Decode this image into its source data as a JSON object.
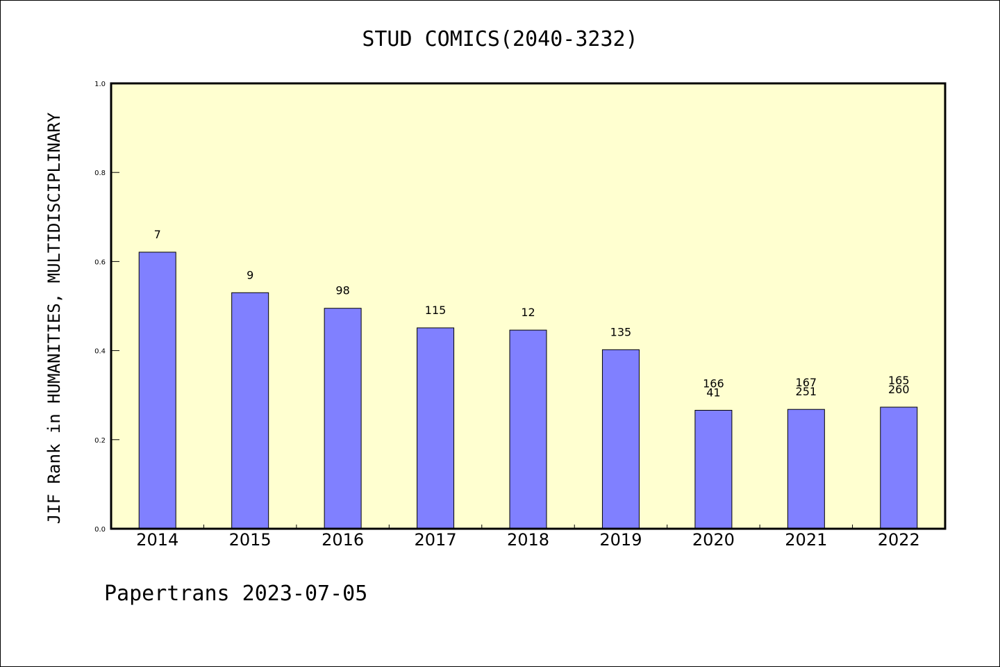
{
  "chart_data": {
    "type": "bar",
    "title": "STUD COMICS(2040-3232)",
    "ylabel": "JIF Rank in HUMANITIES, MULTIDISCIPLINARY",
    "xlabel": "",
    "ylim": [
      0,
      1.0
    ],
    "yticks": [
      "0.0",
      "0.2",
      "0.4",
      "0.6",
      "0.8",
      "1.0"
    ],
    "categories": [
      "2014",
      "2015",
      "2016",
      "2017",
      "2018",
      "2019",
      "2020",
      "2021",
      "2022"
    ],
    "values": [
      0.621,
      0.53,
      0.495,
      0.451,
      0.446,
      0.402,
      0.266,
      0.268,
      0.273
    ],
    "labels": [
      [
        "7"
      ],
      [
        "9"
      ],
      [
        "98"
      ],
      [
        "115"
      ],
      [
        "12"
      ],
      [
        "135"
      ],
      [
        "166",
        "41"
      ],
      [
        "167",
        "251"
      ],
      [
        "165",
        "260"
      ]
    ],
    "grid": false,
    "plot_background": "#ffffd0",
    "bar_color": "#8080ff"
  },
  "footer": "Papertrans 2023-07-05"
}
